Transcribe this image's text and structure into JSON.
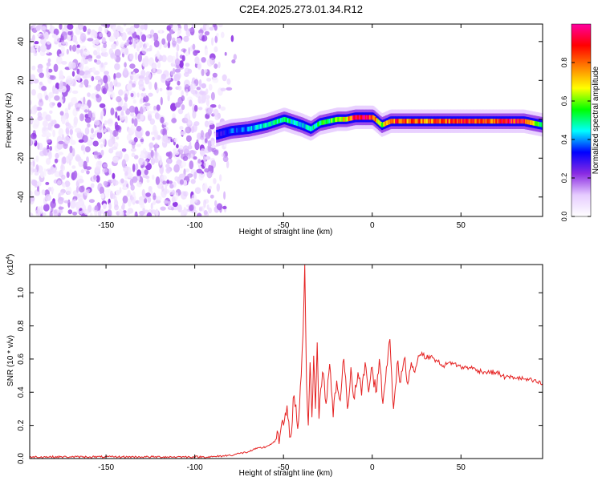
{
  "title": "C2E4.2025.273.01.34.R12",
  "chart_data": [
    {
      "type": "heatmap",
      "xlabel": "Height of straight line (km)",
      "ylabel": "Frequency (Hz)",
      "xlim": [
        -193,
        96
      ],
      "ylim": [
        -50,
        49
      ],
      "xticks": [
        -150,
        -100,
        -50,
        0,
        50
      ],
      "yticks": [
        -40,
        -20,
        0,
        20,
        40
      ],
      "grid": false,
      "colorbar": {
        "label": "Normalized spectral amplitude",
        "range": [
          0,
          1
        ],
        "ticks": [
          "0.0",
          "0.2",
          "0.4",
          "0.6",
          "0.8"
        ],
        "colors": [
          "#ffffff",
          "#e6ccff",
          "#8a2be2",
          "#0000ff",
          "#00ffff",
          "#00ff00",
          "#ffff00",
          "#ff8000",
          "#ff0000",
          "#ff00a0"
        ]
      },
      "noise_region_x": [
        -193,
        -77
      ],
      "ridge": {
        "x": [
          -88,
          -80,
          -70,
          -60,
          -50,
          -40,
          -35,
          -30,
          -20,
          -15,
          -10,
          -5,
          0,
          5,
          10,
          20,
          30,
          50,
          70,
          85,
          96
        ],
        "freq": [
          -8,
          -6,
          -5,
          -3,
          0,
          -3,
          -5,
          -2,
          0,
          0,
          1,
          1,
          1,
          -3,
          -1,
          -1,
          -1,
          -1,
          -1,
          -1,
          -3
        ],
        "amplitude": [
          0.25,
          0.35,
          0.4,
          0.45,
          0.5,
          0.45,
          0.45,
          0.5,
          0.6,
          0.7,
          0.95,
          0.95,
          0.85,
          0.6,
          0.85,
          0.8,
          0.8,
          0.85,
          0.85,
          0.9,
          0.45
        ]
      }
    },
    {
      "type": "line",
      "xlabel": "Height of straight line (km)",
      "ylabel": "SNR (10 * v/v)",
      "yscale_label": "(x10",
      "yscale_exp": "4",
      "yscale_close": ")",
      "xlim": [
        -193,
        96
      ],
      "ylim": [
        0,
        1.17
      ],
      "xticks": [
        -150,
        -100,
        -50,
        0,
        50
      ],
      "yticks": [
        "0.0",
        "0.2",
        "0.4",
        "0.6",
        "0.8",
        "1.0"
      ],
      "grid": false,
      "color": "#e52222",
      "x": [
        -193,
        -170,
        -150,
        -130,
        -110,
        -90,
        -80,
        -75,
        -70,
        -65,
        -60,
        -55,
        -52,
        -50,
        -48,
        -46,
        -44,
        -42,
        -40,
        -39,
        -38,
        -37,
        -36,
        -35,
        -34,
        -33,
        -32,
        -31,
        -30,
        -28,
        -26,
        -24,
        -22,
        -20,
        -18,
        -16,
        -14,
        -12,
        -10,
        -8,
        -6,
        -4,
        -2,
        0,
        2,
        4,
        6,
        8,
        10,
        12,
        14,
        16,
        18,
        20,
        22,
        24,
        26,
        28,
        30,
        32,
        35,
        40,
        45,
        50,
        55,
        60,
        65,
        70,
        75,
        80,
        85,
        90,
        96
      ],
      "values": [
        0.01,
        0.01,
        0.01,
        0.01,
        0.01,
        0.01,
        0.02,
        0.03,
        0.04,
        0.06,
        0.07,
        0.1,
        0.14,
        0.2,
        0.32,
        0.13,
        0.38,
        0.18,
        0.5,
        0.75,
        1.17,
        0.45,
        0.2,
        0.58,
        0.25,
        0.62,
        0.3,
        0.7,
        0.24,
        0.52,
        0.33,
        0.57,
        0.25,
        0.47,
        0.35,
        0.6,
        0.3,
        0.55,
        0.36,
        0.52,
        0.38,
        0.58,
        0.4,
        0.55,
        0.4,
        0.6,
        0.33,
        0.55,
        0.72,
        0.3,
        0.57,
        0.46,
        0.6,
        0.45,
        0.58,
        0.52,
        0.62,
        0.64,
        0.6,
        0.62,
        0.6,
        0.56,
        0.58,
        0.55,
        0.55,
        0.53,
        0.52,
        0.52,
        0.49,
        0.49,
        0.48,
        0.47,
        0.45
      ]
    }
  ]
}
